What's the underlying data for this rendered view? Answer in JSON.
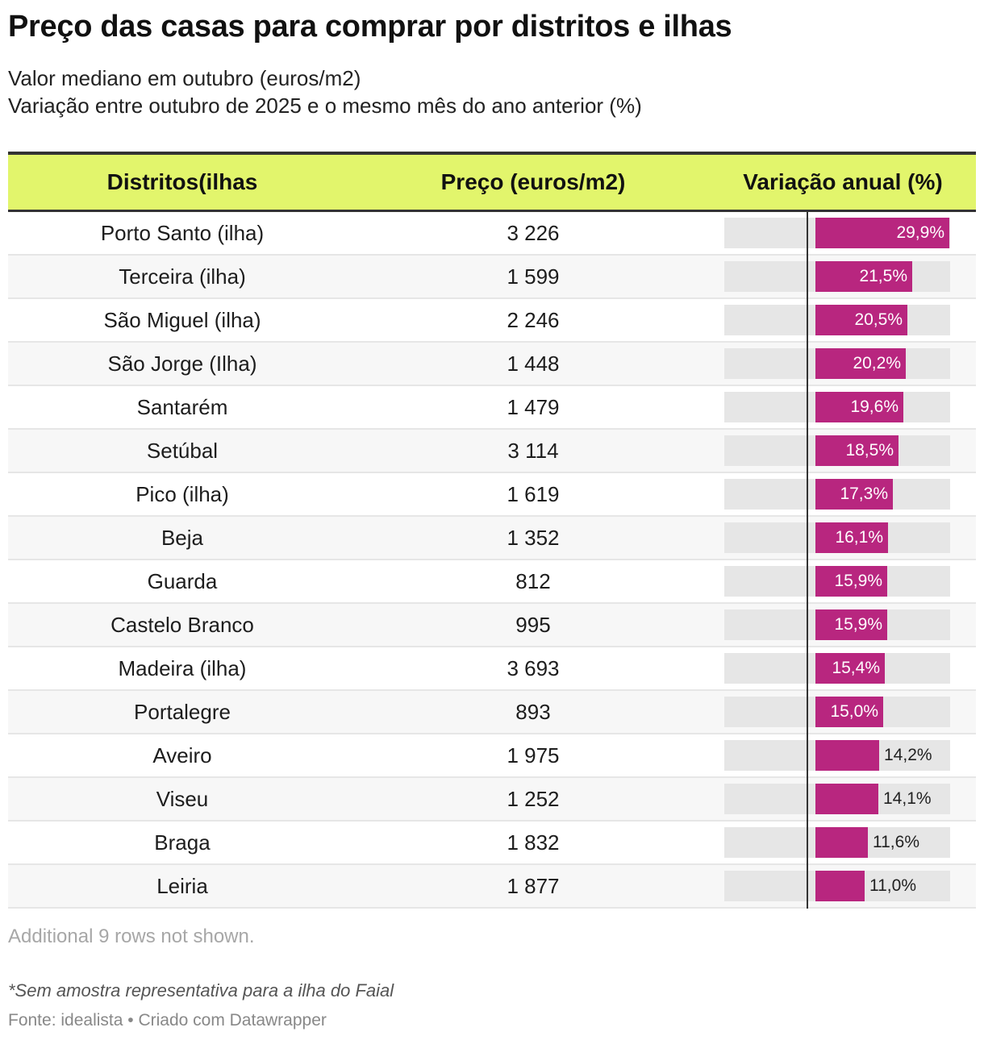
{
  "title": "Preço das casas para comprar por distritos e ilhas",
  "subtitle_line1": "Valor mediano em outubro (euros/m2)",
  "subtitle_line2": "Variação entre outubro de 2025 e o mesmo mês do ano anterior (%)",
  "colors": {
    "header_bg": "#e2f56c",
    "bar": "#b8267f",
    "bar_bg": "#e6e6e6"
  },
  "chart_data": {
    "type": "table",
    "columns": [
      "Distritos(ilhas",
      "Preço (euros/m2)",
      "Variação anual (%)"
    ],
    "bar_column_max": 30,
    "rows": [
      {
        "name": "Porto Santo (ilha)",
        "price": "3 226",
        "variation": 29.9,
        "variation_label": "29,9%"
      },
      {
        "name": "Terceira (ilha)",
        "price": "1 599",
        "variation": 21.5,
        "variation_label": "21,5%"
      },
      {
        "name": "São Miguel (ilha)",
        "price": "2 246",
        "variation": 20.5,
        "variation_label": "20,5%"
      },
      {
        "name": "São Jorge (Ilha)",
        "price": "1 448",
        "variation": 20.2,
        "variation_label": "20,2%"
      },
      {
        "name": "Santarém",
        "price": "1 479",
        "variation": 19.6,
        "variation_label": "19,6%"
      },
      {
        "name": "Setúbal",
        "price": "3 114",
        "variation": 18.5,
        "variation_label": "18,5%"
      },
      {
        "name": "Pico (ilha)",
        "price": "1 619",
        "variation": 17.3,
        "variation_label": "17,3%"
      },
      {
        "name": "Beja",
        "price": "1 352",
        "variation": 16.1,
        "variation_label": "16,1%"
      },
      {
        "name": "Guarda",
        "price": "812",
        "variation": 15.9,
        "variation_label": "15,9%"
      },
      {
        "name": "Castelo Branco",
        "price": "995",
        "variation": 15.9,
        "variation_label": "15,9%"
      },
      {
        "name": "Madeira (ilha)",
        "price": "3 693",
        "variation": 15.4,
        "variation_label": "15,4%"
      },
      {
        "name": "Portalegre",
        "price": "893",
        "variation": 15.0,
        "variation_label": "15,0%"
      },
      {
        "name": "Aveiro",
        "price": "1 975",
        "variation": 14.2,
        "variation_label": "14,2%"
      },
      {
        "name": "Viseu",
        "price": "1 252",
        "variation": 14.1,
        "variation_label": "14,1%"
      },
      {
        "name": "Braga",
        "price": "1 832",
        "variation": 11.6,
        "variation_label": "11,6%"
      },
      {
        "name": "Leiria",
        "price": "1 877",
        "variation": 11.0,
        "variation_label": "11,0%"
      }
    ]
  },
  "more_rows_text": "Additional 9 rows not shown.",
  "note": "*Sem amostra representativa para a ilha do Faial",
  "source": "Fonte: idealista • Criado com Datawrapper"
}
